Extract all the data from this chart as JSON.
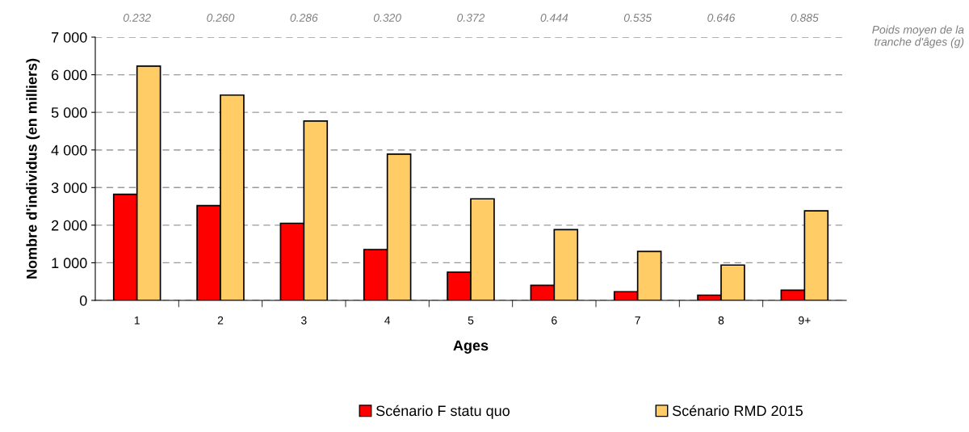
{
  "chart_data": {
    "type": "bar",
    "xlabel": "Ages",
    "ylabel": "Nombre d'individus (en milliers)",
    "categories": [
      "1",
      "2",
      "3",
      "4",
      "5",
      "6",
      "7",
      "8",
      "9+"
    ],
    "series": [
      {
        "name": "Scénario F statu quo",
        "color": "#ff0000",
        "values": [
          2820,
          2520,
          2050,
          1350,
          750,
          400,
          230,
          140,
          270
        ]
      },
      {
        "name": "Scénario RMD 2015",
        "color": "#ffcc66",
        "values": [
          6230,
          5460,
          4770,
          3890,
          2700,
          1880,
          1300,
          940,
          2380
        ]
      }
    ],
    "ylim": [
      0,
      7000
    ],
    "yticks": [
      {
        "value": 0,
        "label": "0"
      },
      {
        "value": 1000,
        "label": "1 000"
      },
      {
        "value": 2000,
        "label": "2 000"
      },
      {
        "value": 3000,
        "label": "3 000"
      },
      {
        "value": 4000,
        "label": "4 000"
      },
      {
        "value": 5000,
        "label": "5 000"
      },
      {
        "value": 6000,
        "label": "6 000"
      },
      {
        "value": 7000,
        "label": "7 000"
      }
    ],
    "grid": "y",
    "legend": "bottom",
    "annotations": [
      "0.232",
      "0.260",
      "0.286",
      "0.320",
      "0.372",
      "0.444",
      "0.535",
      "0.646",
      "0.885",
      "Poids moyen de la\ntranche d'âges (g)"
    ]
  }
}
